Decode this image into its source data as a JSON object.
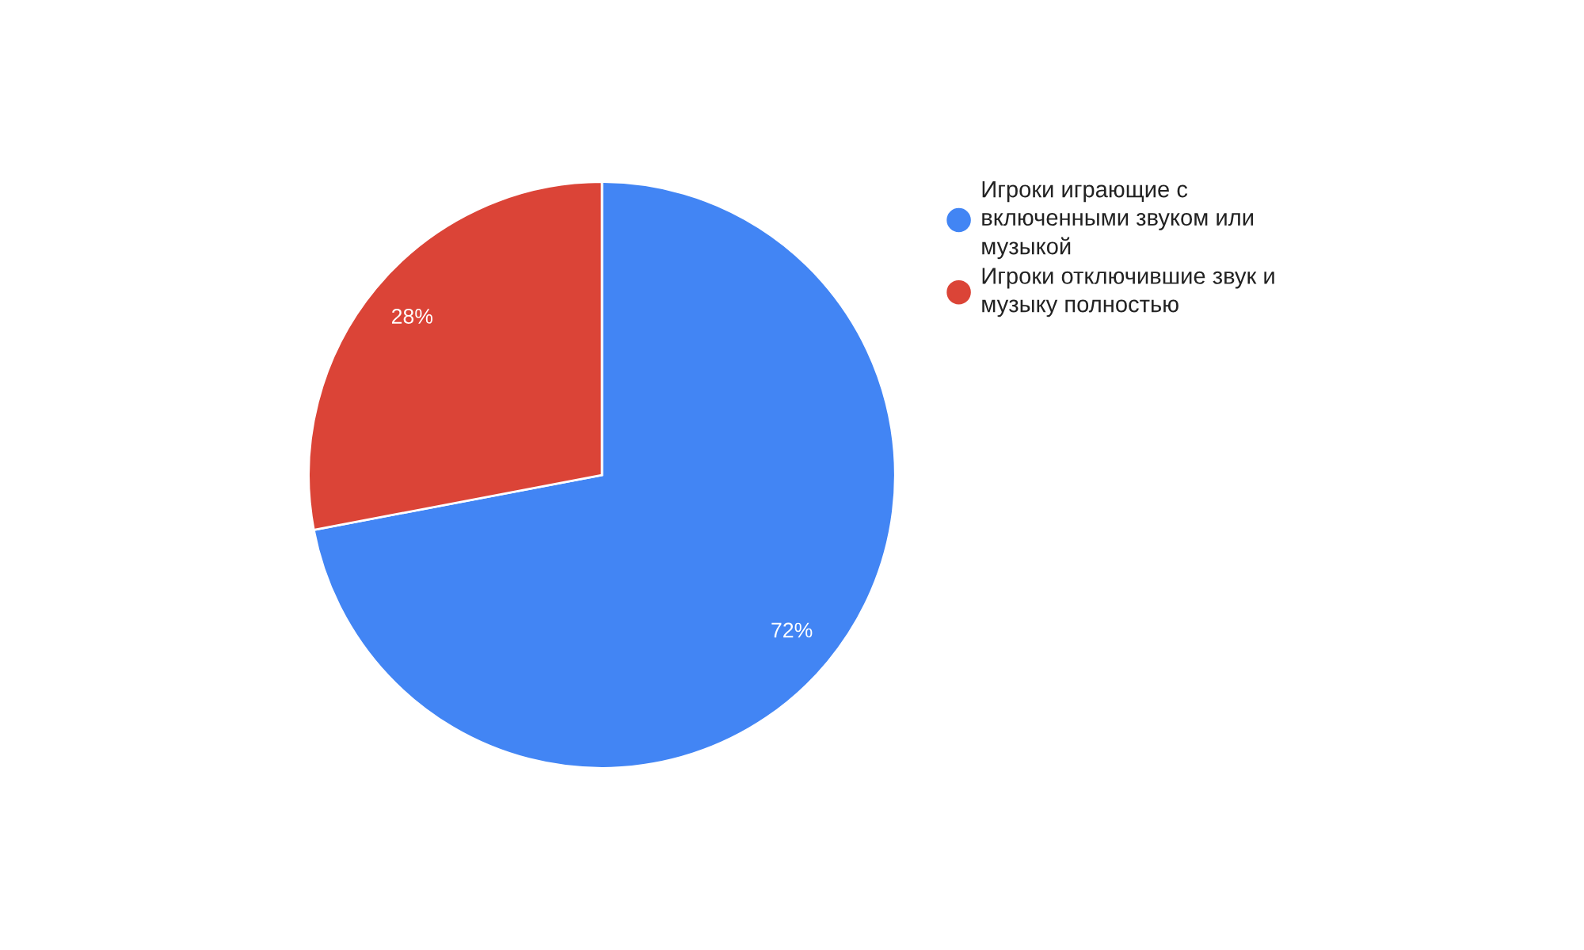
{
  "chart_data": {
    "type": "pie",
    "categories": [
      "Игроки играющие с включенными звуком или музыкой",
      "Игроки отключившие звук и музыку полностью"
    ],
    "values": [
      72,
      28
    ],
    "colors": [
      "#4285f4",
      "#db4437"
    ],
    "value_labels": [
      "72%",
      "28%"
    ],
    "legend": "right"
  }
}
